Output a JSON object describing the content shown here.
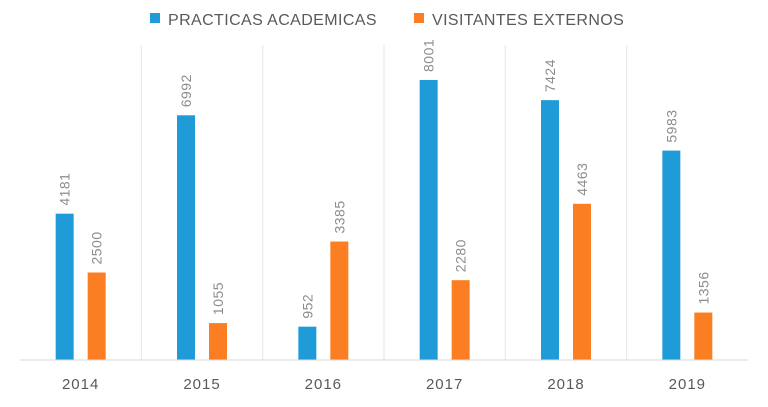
{
  "chart_data": {
    "type": "bar",
    "categories": [
      "2014",
      "2015",
      "2016",
      "2017",
      "2018",
      "2019"
    ],
    "series": [
      {
        "name": "PRACTICAS ACADEMICAS",
        "color": "#1f9bd7",
        "values": [
          4181,
          6992,
          952,
          8001,
          7424,
          5983
        ]
      },
      {
        "name": "VISITANTES EXTERNOS",
        "color": "#fb7f22",
        "values": [
          2500,
          1055,
          3385,
          2280,
          4463,
          1356
        ]
      }
    ],
    "title": "",
    "xlabel": "",
    "ylabel": "",
    "ylim": [
      0,
      9000
    ],
    "grid": "vertical separators between categories",
    "legend_position": "top",
    "data_labels": "rotated vertical, above bars"
  }
}
